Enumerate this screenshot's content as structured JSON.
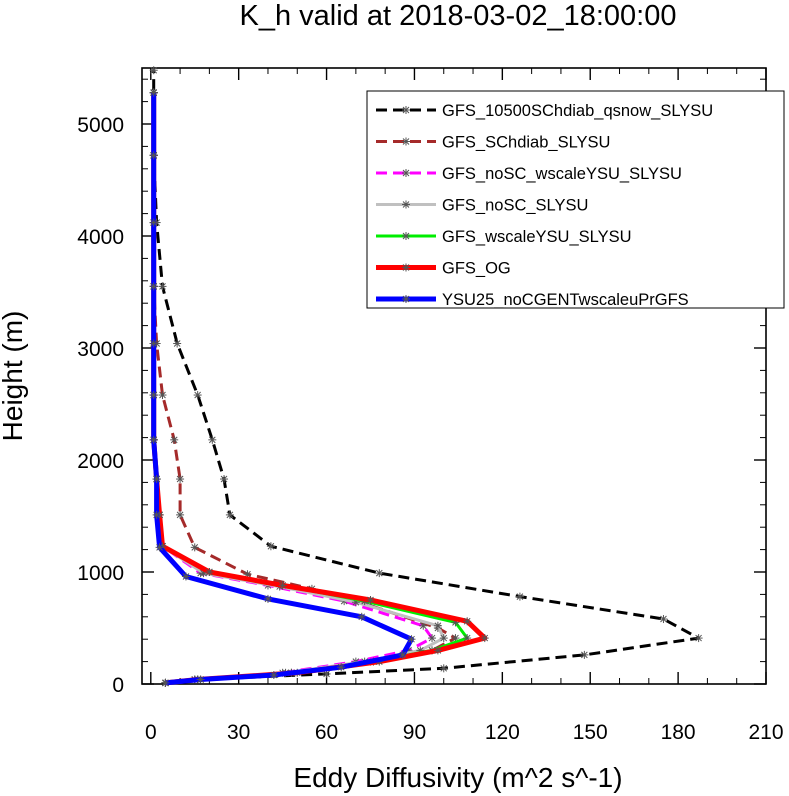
{
  "chart_data": {
    "type": "line",
    "title": "K_h valid at 2018-03-02_18:00:00",
    "xlabel": "Eddy Diffusivity (m^2 s^-1)",
    "ylabel": "Height (m)",
    "xlim": [
      -3,
      210
    ],
    "ylim": [
      0,
      5500
    ],
    "xticks": [
      "0",
      "30",
      "60",
      "90",
      "120",
      "150",
      "180",
      "210"
    ],
    "yticks": [
      "0",
      "1000",
      "2000",
      "3000",
      "4000",
      "5000"
    ],
    "grid": false,
    "legend_position": "top-right",
    "series": [
      {
        "name": "GFS_10500SChdiab_qsnow_SLYSU",
        "color": "#000000",
        "dash": "dashed",
        "width": 3,
        "points": [
          [
            5,
            10
          ],
          [
            17,
            40
          ],
          [
            60,
            90
          ],
          [
            100,
            140
          ],
          [
            148,
            260
          ],
          [
            187,
            410
          ],
          [
            175,
            580
          ],
          [
            126,
            780
          ],
          [
            78,
            990
          ],
          [
            41,
            1230
          ],
          [
            27,
            1510
          ],
          [
            25,
            1830
          ],
          [
            21,
            2180
          ],
          [
            16,
            2580
          ],
          [
            9,
            3040
          ],
          [
            4,
            3550
          ],
          [
            2,
            4120
          ],
          [
            1,
            4720
          ],
          [
            1,
            5280
          ],
          [
            1,
            5480
          ]
        ]
      },
      {
        "name": "GFS_SChdiab_SLYSU",
        "color": "#a52a2a",
        "dash": "dashed",
        "width": 3,
        "points": [
          [
            5,
            10
          ],
          [
            16,
            40
          ],
          [
            48,
            100
          ],
          [
            75,
            200
          ],
          [
            96,
            300
          ],
          [
            104,
            410
          ],
          [
            98,
            500
          ],
          [
            75,
            700
          ],
          [
            55,
            850
          ],
          [
            33,
            980
          ],
          [
            15,
            1220
          ],
          [
            10,
            1510
          ],
          [
            10,
            1830
          ],
          [
            8,
            2180
          ],
          [
            4,
            2580
          ],
          [
            2,
            3040
          ],
          [
            1,
            3550
          ],
          [
            1,
            4120
          ],
          [
            1,
            4720
          ],
          [
            1,
            5280
          ]
        ]
      },
      {
        "name": "GFS_noSC_wscaleYSU_SLYSU",
        "color": "#ff00ff",
        "dash": "dashed",
        "width": 3,
        "points": [
          [
            5,
            10
          ],
          [
            15,
            40
          ],
          [
            45,
            100
          ],
          [
            70,
            200
          ],
          [
            88,
            300
          ],
          [
            96,
            410
          ],
          [
            93,
            520
          ],
          [
            66,
            740
          ],
          [
            40,
            880
          ],
          [
            17,
            990
          ],
          [
            4,
            1230
          ],
          [
            3,
            1510
          ],
          [
            2,
            1830
          ],
          [
            1,
            2180
          ],
          [
            1,
            2580
          ],
          [
            1,
            3040
          ],
          [
            1,
            3550
          ],
          [
            1,
            4120
          ],
          [
            1,
            4720
          ],
          [
            1,
            5280
          ]
        ]
      },
      {
        "name": "GFS_noSC_SLYSU",
        "color": "#c0c0c0",
        "dash": "solid",
        "width": 3,
        "points": [
          [
            5,
            10
          ],
          [
            15,
            40
          ],
          [
            46,
            100
          ],
          [
            73,
            200
          ],
          [
            92,
            300
          ],
          [
            100,
            410
          ],
          [
            98,
            520
          ],
          [
            70,
            730
          ],
          [
            44,
            870
          ],
          [
            18,
            990
          ],
          [
            4,
            1230
          ],
          [
            3,
            1510
          ],
          [
            2,
            1830
          ],
          [
            1,
            2180
          ],
          [
            1,
            2580
          ],
          [
            1,
            3040
          ],
          [
            1,
            3550
          ],
          [
            1,
            4120
          ],
          [
            1,
            4720
          ],
          [
            1,
            5280
          ]
        ]
      },
      {
        "name": "GFS_wscaleYSU_SLYSU",
        "color": "#00ee00",
        "dash": "solid",
        "width": 3,
        "points": [
          [
            5,
            10
          ],
          [
            16,
            40
          ],
          [
            48,
            100
          ],
          [
            76,
            200
          ],
          [
            96,
            300
          ],
          [
            108,
            410
          ],
          [
            104,
            550
          ],
          [
            73,
            740
          ],
          [
            45,
            880
          ],
          [
            20,
            1000
          ],
          [
            4,
            1230
          ],
          [
            3,
            1510
          ],
          [
            2,
            1830
          ],
          [
            1,
            2180
          ],
          [
            1,
            2580
          ],
          [
            1,
            3040
          ],
          [
            1,
            3550
          ],
          [
            1,
            4120
          ],
          [
            1,
            4720
          ],
          [
            1,
            5280
          ]
        ]
      },
      {
        "name": "GFS_OG",
        "color": "#ff0000",
        "dash": "solid",
        "width": 5,
        "points": [
          [
            5,
            10
          ],
          [
            16,
            40
          ],
          [
            50,
            100
          ],
          [
            78,
            200
          ],
          [
            98,
            300
          ],
          [
            114,
            410
          ],
          [
            108,
            560
          ],
          [
            75,
            750
          ],
          [
            45,
            880
          ],
          [
            20,
            1000
          ],
          [
            4,
            1230
          ],
          [
            3,
            1510
          ],
          [
            2,
            1830
          ],
          [
            1,
            2180
          ],
          [
            1,
            2580
          ],
          [
            1,
            3040
          ],
          [
            1,
            3550
          ],
          [
            1,
            4120
          ],
          [
            1,
            4720
          ],
          [
            1,
            5280
          ]
        ]
      },
      {
        "name": "YSU25_noCGENTwscaleuPrGFS",
        "color": "#0000ff",
        "dash": "solid",
        "width": 5,
        "points": [
          [
            5,
            10
          ],
          [
            17,
            40
          ],
          [
            42,
            80
          ],
          [
            65,
            150
          ],
          [
            86,
            260
          ],
          [
            89,
            400
          ],
          [
            72,
            600
          ],
          [
            40,
            760
          ],
          [
            12,
            960
          ],
          [
            3,
            1220
          ],
          [
            2,
            1510
          ],
          [
            2,
            1830
          ],
          [
            1,
            2180
          ],
          [
            1,
            2580
          ],
          [
            1,
            3040
          ],
          [
            1,
            3550
          ],
          [
            1,
            4120
          ],
          [
            1,
            4720
          ],
          [
            1,
            5280
          ]
        ]
      }
    ]
  }
}
